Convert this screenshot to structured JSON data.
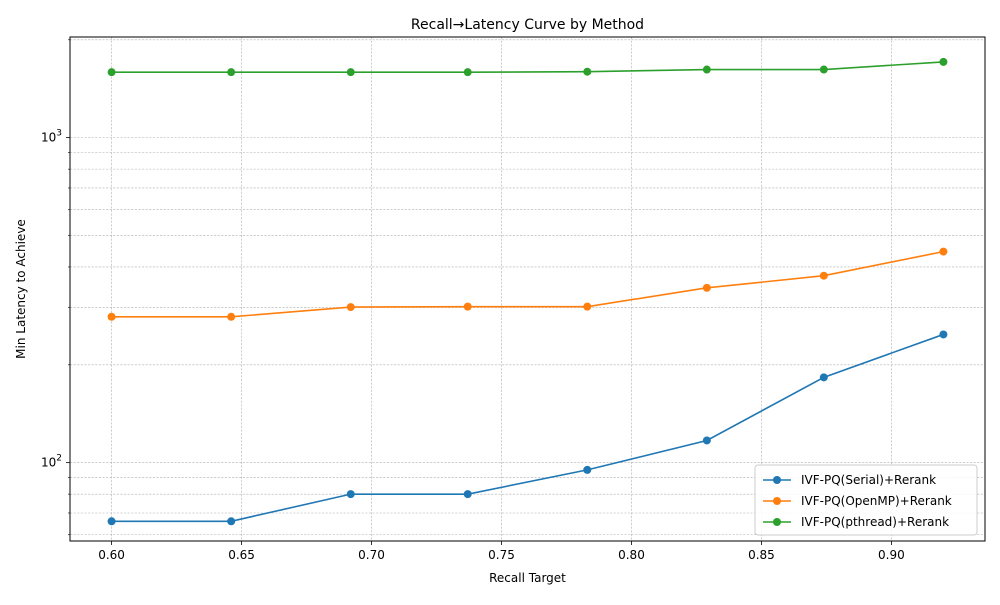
{
  "chart_data": {
    "type": "line",
    "title": "Recall→Latency Curve by Method",
    "xlabel": "Recall Target",
    "ylabel": "Min Latency to Achieve",
    "yscale": "log",
    "xlim": [
      0.584,
      0.936
    ],
    "ylim": [
      57.4,
      2040
    ],
    "grid": true,
    "legend_position": "lower-right",
    "x": [
      0.6,
      0.646,
      0.692,
      0.737,
      0.783,
      0.829,
      0.874,
      0.92
    ],
    "x_ticks": [
      {
        "value": 0.6,
        "label": "0.60"
      },
      {
        "value": 0.65,
        "label": "0.65"
      },
      {
        "value": 0.7,
        "label": "0.70"
      },
      {
        "value": 0.75,
        "label": "0.75"
      },
      {
        "value": 0.8,
        "label": "0.80"
      },
      {
        "value": 0.85,
        "label": "0.85"
      },
      {
        "value": 0.9,
        "label": "0.90"
      }
    ],
    "y_major_ticks": [
      {
        "value": 100,
        "base": "10",
        "exp": "2"
      },
      {
        "value": 1000,
        "base": "10",
        "exp": "3"
      }
    ],
    "y_minor_ticks": [
      60,
      70,
      80,
      90,
      200,
      300,
      400,
      500,
      600,
      700,
      800,
      900,
      2000
    ],
    "series": [
      {
        "name": "IVF-PQ(Serial)+Rerank",
        "color": "#1f77b4",
        "values": [
          66,
          66,
          80,
          80,
          95,
          117,
          183,
          248
        ]
      },
      {
        "name": "IVF-PQ(OpenMP)+Rerank",
        "color": "#ff7f0e",
        "values": [
          281,
          281,
          301,
          302,
          302,
          345,
          376,
          446
        ]
      },
      {
        "name": "IVF-PQ(pthread)+Rerank",
        "color": "#2ca02c",
        "values": [
          1590,
          1590,
          1590,
          1590,
          1595,
          1620,
          1620,
          1710
        ]
      }
    ]
  }
}
